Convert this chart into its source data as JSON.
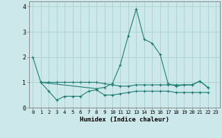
{
  "title": "",
  "xlabel": "Humidex (Indice chaleur)",
  "bg_color": "#cce8ea",
  "line_color": "#1a7a6e",
  "grid_color": "#aacfcf",
  "line1_x": [
    0,
    1,
    2,
    3,
    4,
    5,
    6,
    7,
    8,
    9,
    10,
    11,
    12,
    13,
    14,
    15,
    16,
    17,
    18,
    19,
    20,
    21,
    22
  ],
  "line1_y": [
    2.0,
    1.0,
    0.65,
    0.3,
    0.45,
    0.45,
    0.45,
    0.65,
    0.7,
    0.5,
    0.5,
    0.55,
    0.6,
    0.65,
    0.65,
    0.65,
    0.65,
    0.65,
    0.6,
    0.6,
    0.6,
    0.6,
    0.6
  ],
  "line2_x": [
    1,
    2,
    3,
    4,
    5,
    6,
    7,
    8,
    9,
    10,
    11,
    12,
    13,
    14,
    15,
    16,
    17,
    18,
    19,
    20,
    21,
    22
  ],
  "line2_y": [
    1.0,
    1.0,
    1.0,
    1.0,
    1.0,
    1.0,
    1.0,
    1.0,
    0.95,
    0.9,
    0.85,
    0.85,
    0.9,
    0.9,
    0.9,
    0.9,
    0.9,
    0.9,
    0.9,
    0.9,
    1.05,
    0.8
  ],
  "line3_x": [
    1,
    8,
    9,
    10,
    11,
    12,
    13,
    14,
    15,
    16,
    17,
    18,
    19,
    20,
    21,
    22
  ],
  "line3_y": [
    1.0,
    0.75,
    0.8,
    0.95,
    1.7,
    2.85,
    3.9,
    2.7,
    2.55,
    2.1,
    0.95,
    0.85,
    0.9,
    0.9,
    1.05,
    0.8
  ],
  "ylim": [
    0.0,
    4.2
  ],
  "xlim": [
    -0.5,
    23.5
  ],
  "yticks": [
    0,
    1,
    2,
    3,
    4
  ],
  "xticks": [
    0,
    1,
    2,
    3,
    4,
    5,
    6,
    7,
    8,
    9,
    10,
    11,
    12,
    13,
    14,
    15,
    16,
    17,
    18,
    19,
    20,
    21,
    22,
    23
  ]
}
